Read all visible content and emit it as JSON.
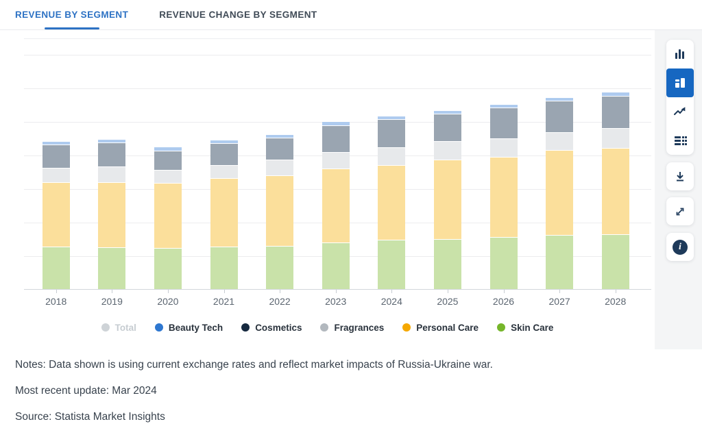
{
  "tabs": [
    {
      "label": "REVENUE BY SEGMENT",
      "active": true
    },
    {
      "label": "REVENUE CHANGE BY SEGMENT",
      "active": false
    }
  ],
  "toolbar": {
    "chart_type_buttons": [
      {
        "name": "column-chart",
        "selected": false
      },
      {
        "name": "stacked-chart",
        "selected": true
      },
      {
        "name": "line-chart",
        "selected": false
      },
      {
        "name": "data-table",
        "selected": false
      }
    ],
    "action_buttons": [
      {
        "name": "download"
      },
      {
        "name": "fullscreen"
      },
      {
        "name": "info"
      }
    ]
  },
  "chart_data": {
    "type": "bar",
    "stacked": true,
    "title": "",
    "xlabel": "",
    "ylabel": "",
    "y_axis_labels_visible": false,
    "grid": true,
    "legend_position": "bottom",
    "ylim": [
      0,
      700
    ],
    "gridline_step": 100,
    "categories": [
      "2018",
      "2019",
      "2020",
      "2021",
      "2022",
      "2023",
      "2024",
      "2025",
      "2026",
      "2027",
      "2028"
    ],
    "series": [
      {
        "name": "Skin Care",
        "color": "#c9e2a9",
        "values": [
          127,
          125,
          123,
          127,
          128,
          138,
          146,
          149,
          155,
          161,
          164
        ]
      },
      {
        "name": "Personal Care",
        "color": "#fbdf9b",
        "values": [
          191,
          194,
          193,
          203,
          211,
          222,
          223,
          237,
          239,
          254,
          257
        ]
      },
      {
        "name": "Fragrances",
        "color": "#e7e9eb",
        "values": [
          44,
          46,
          39,
          39,
          46,
          48,
          53,
          54,
          54,
          53,
          59
        ]
      },
      {
        "name": "Cosmetics",
        "color": "#9aa5b1",
        "values": [
          68,
          72,
          58,
          66,
          67,
          80,
          84,
          83,
          92,
          94,
          96
        ]
      },
      {
        "name": "Beauty Tech",
        "color": "#aecbef",
        "values": [
          9,
          8,
          9,
          7,
          8,
          9,
          9,
          8,
          9,
          8,
          10
        ]
      }
    ]
  },
  "legend": {
    "items": [
      {
        "label": "Total",
        "color": "#ced3d7",
        "muted": true
      },
      {
        "label": "Beauty Tech",
        "color": "#2e77d0",
        "muted": false
      },
      {
        "label": "Cosmetics",
        "color": "#16293f",
        "muted": false
      },
      {
        "label": "Fragrances",
        "color": "#b2b8be",
        "muted": false
      },
      {
        "label": "Personal Care",
        "color": "#f5a800",
        "muted": false
      },
      {
        "label": "Skin Care",
        "color": "#76b62a",
        "muted": false
      }
    ]
  },
  "notes": {
    "notes_line": "Notes: Data shown is using current exchange rates and reflect market impacts of Russia-Ukraine war.",
    "update_line": "Most recent update: Mar 2024",
    "source_line": "Source: Statista Market Insights"
  }
}
